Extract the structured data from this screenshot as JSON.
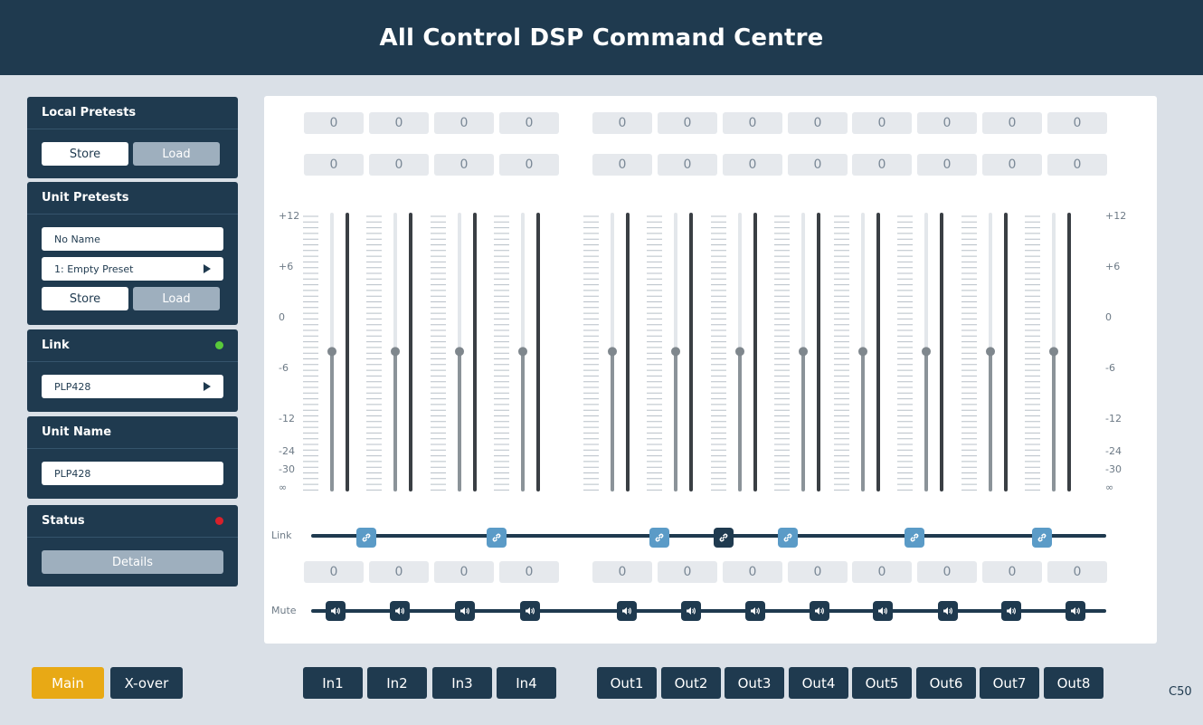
{
  "app": {
    "title": "All Control DSP Command Centre",
    "version": "C50"
  },
  "sidebar": {
    "local_presets": {
      "title": "Local Pretests",
      "store_label": "Store",
      "load_label": "Load"
    },
    "unit_presets": {
      "title": "Unit Pretests",
      "name_value": "No Name",
      "preset_value": "1: Empty Preset",
      "store_label": "Store",
      "load_label": "Load"
    },
    "link": {
      "title": "Link",
      "status_color": "#59c93a",
      "device_value": "PLP428"
    },
    "unit_name": {
      "title": "Unit Name",
      "value": "PLP428"
    },
    "status": {
      "title": "Status",
      "status_color": "#d8202a",
      "details_label": "Details"
    }
  },
  "mixer": {
    "top_values": [
      "0",
      "0",
      "0",
      "0",
      "0",
      "0",
      "0",
      "0",
      "0",
      "0",
      "0",
      "0"
    ],
    "second_values": [
      "0",
      "0",
      "0",
      "0",
      "0",
      "0",
      "0",
      "0",
      "0",
      "0",
      "0",
      "0"
    ],
    "gain_values": [
      "0",
      "0",
      "0",
      "0",
      "0",
      "0",
      "0",
      "0",
      "0",
      "0",
      "0",
      "0"
    ],
    "scale_labels": [
      "+12",
      "+6",
      "0",
      "-6",
      "-12",
      "-24",
      "-30",
      "∞"
    ],
    "fader_levels_db": [
      -4,
      -4,
      -4,
      -4,
      -4,
      -4,
      -4,
      -4,
      -4,
      -4,
      -4,
      -4
    ],
    "link_label": "Link",
    "mute_label": "Mute",
    "link_button_active": [
      false,
      false,
      false,
      true,
      false,
      false,
      false
    ]
  },
  "nav": {
    "main_label": "Main",
    "xover_label": "X-over",
    "inputs": [
      "In1",
      "In2",
      "In3",
      "In4"
    ],
    "outputs": [
      "Out1",
      "Out2",
      "Out3",
      "Out4",
      "Out5",
      "Out6",
      "Out7",
      "Out8"
    ]
  },
  "colors": {
    "accent": "#e8a915",
    "primary": "#1f3a4f",
    "link_blue": "#5b9bc7"
  }
}
